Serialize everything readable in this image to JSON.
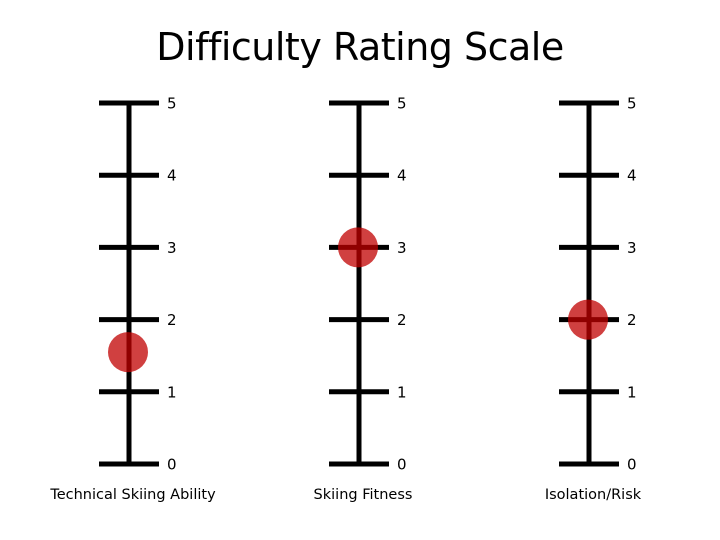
{
  "title": "Difficulty Rating Scale",
  "scale_levels": [
    "0",
    "1",
    "2",
    "3",
    "4",
    "5"
  ],
  "scales": [
    {
      "label": "Technical Skiing Ability",
      "rating": 1.55
    },
    {
      "label": "Skiing Fitness",
      "rating": 3
    },
    {
      "label": "Isolation/Risk",
      "rating": 2
    }
  ],
  "colors": {
    "scale_line": "#000000",
    "marker": "#c00000"
  }
}
